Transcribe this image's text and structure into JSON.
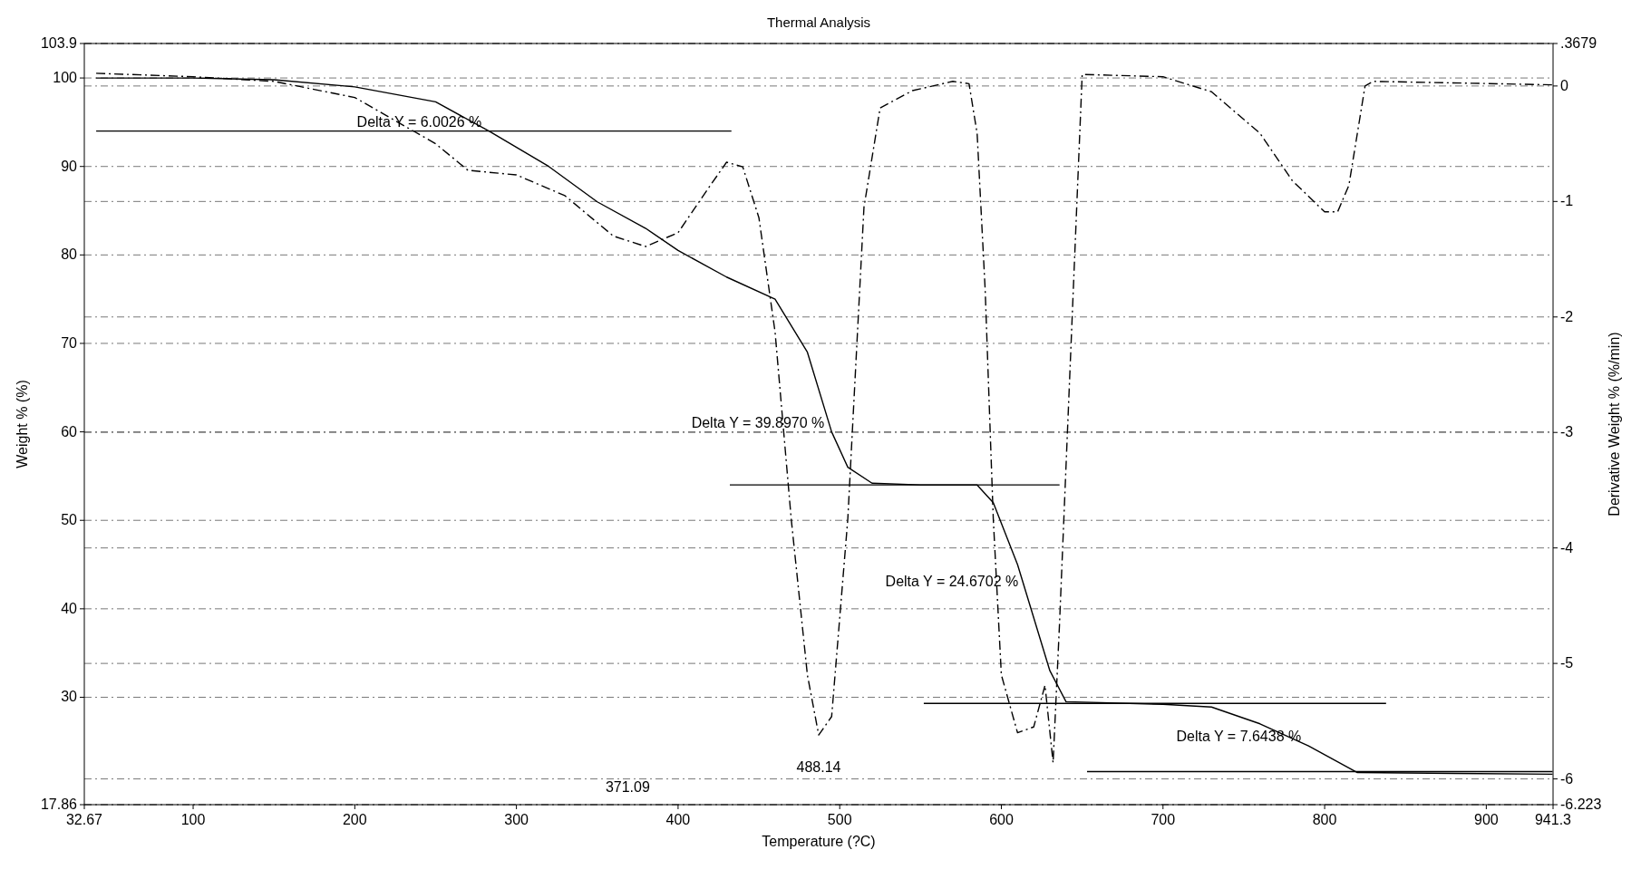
{
  "chart_data": {
    "type": "line",
    "title": "Thermal Analysis",
    "xlabel": "Temperature (?C)",
    "ylabel": "Weight % (%)",
    "y2label": "Derivative Weight % (%/min)",
    "xlim": [
      32.67,
      941.3
    ],
    "xticks": [
      {
        "value": 32.67,
        "label": "32.67"
      },
      100,
      200,
      300,
      400,
      500,
      600,
      700,
      800,
      900,
      {
        "value": 941.3,
        "label": "941.3"
      }
    ],
    "ylim": [
      17.86,
      103.9
    ],
    "yticks": [
      {
        "value": 17.86,
        "label": "17.86"
      },
      30,
      40,
      50,
      60,
      70,
      80,
      90,
      100,
      {
        "value": 103.9,
        "label": "103.9"
      }
    ],
    "y2lim": [
      -6.223,
      0.3679
    ],
    "y2ticks": [
      {
        "value": -6.223,
        "label": "-6.223"
      },
      -6,
      -5,
      -4,
      -3,
      -2,
      -1,
      0,
      {
        "value": 0.3679,
        "label": ".3679"
      }
    ],
    "grid": "y",
    "series": [
      {
        "color": "#000000",
        "line_style": "solid",
        "x": [
          40,
          100,
          150,
          200,
          250,
          283,
          320,
          350,
          380,
          400,
          430,
          460,
          480,
          495,
          505,
          520,
          550,
          585,
          595,
          610,
          630,
          640,
          700,
          730,
          760,
          790,
          810,
          820,
          880,
          941
        ],
        "values": [
          100,
          100,
          99.8,
          99,
          97.3,
          94,
          90,
          86,
          83,
          80.5,
          77.5,
          75,
          69,
          60,
          56,
          54.2,
          54,
          54,
          52,
          45,
          33,
          29.5,
          29.2,
          28.9,
          27,
          24.5,
          22.5,
          21.5,
          21.4,
          21.3
        ]
      },
      {
        "color": "#000000",
        "line_style": "dashed",
        "axis": "y2",
        "x": [
          40,
          100,
          150,
          200,
          250,
          270,
          300,
          330,
          360,
          380,
          400,
          420,
          430,
          440,
          450,
          460,
          470,
          480,
          487,
          495,
          505,
          515,
          525,
          545,
          570,
          580,
          585,
          590,
          595,
          600,
          610,
          620,
          627,
          632,
          636,
          650,
          700,
          730,
          760,
          780,
          800,
          808,
          815,
          825,
          830,
          941
        ],
        "values": [
          0.11,
          0.08,
          0.04,
          -0.1,
          -0.5,
          -0.73,
          -0.77,
          -0.95,
          -1.3,
          -1.39,
          -1.27,
          -0.86,
          -0.66,
          -0.7,
          -1.14,
          -2.13,
          -3.75,
          -5.1,
          -5.62,
          -5.46,
          -3.75,
          -1.05,
          -0.19,
          -0.04,
          0.04,
          0.02,
          -0.41,
          -1.77,
          -3.75,
          -5.1,
          -5.6,
          -5.55,
          -5.19,
          -5.86,
          -4.65,
          0.1,
          0.08,
          -0.05,
          -0.41,
          -0.82,
          -1.09,
          -1.09,
          -0.86,
          0,
          0.04,
          0.01
        ]
      },
      {
        "color": "#000000",
        "line_style": "solid",
        "x": [
          40,
          433
        ],
        "values": [
          94,
          94
        ]
      },
      {
        "color": "#000000",
        "line_style": "solid",
        "x": [
          432,
          636
        ],
        "values": [
          54,
          54
        ]
      },
      {
        "color": "#000000",
        "line_style": "solid",
        "x": [
          552,
          838
        ],
        "values": [
          29.3,
          29.3
        ]
      },
      {
        "color": "#000000",
        "line_style": "solid",
        "x": [
          653,
          941
        ],
        "values": [
          21.6,
          21.6
        ]
      }
    ],
    "annotations": [
      {
        "text": "Delta Y = 6.0026 %",
        "x": 283,
        "y": 94
      },
      {
        "text": "Delta Y = 39.8970 %",
        "x": 495,
        "y": 60
      },
      {
        "text": "Delta Y = 24.6702 %",
        "x": 615,
        "y": 42
      },
      {
        "text": "Delta Y = 7.6438 %",
        "x": 790,
        "y": 24.5
      },
      "488.14",
      "371.09"
    ]
  }
}
